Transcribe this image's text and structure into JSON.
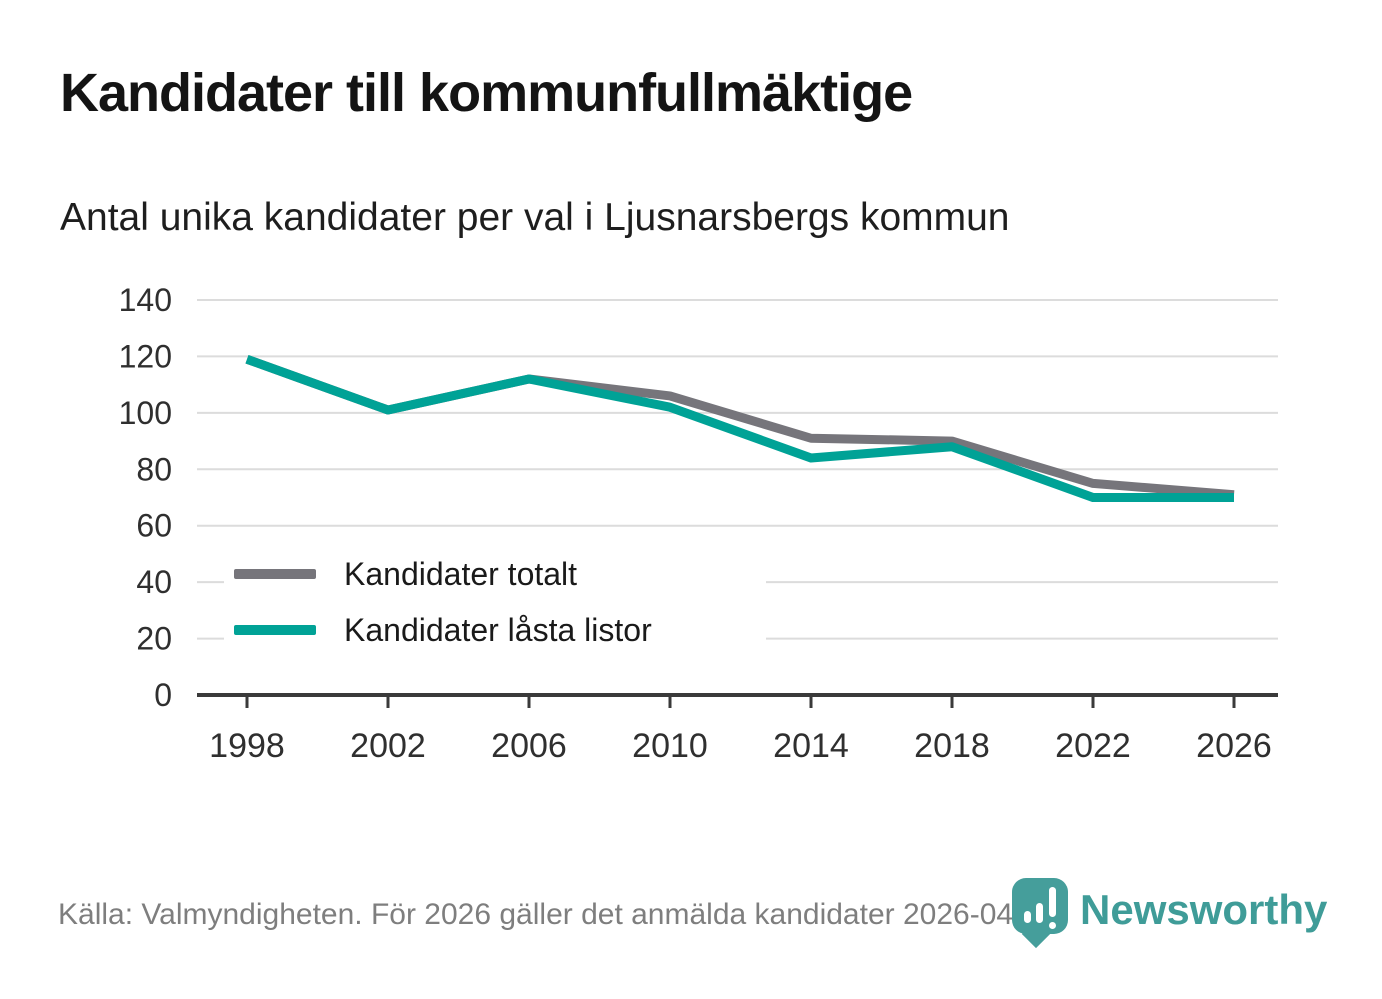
{
  "header": {
    "title": "Kandidater till kommunfullmäktige",
    "subtitle": "Antal unika kandidater per val i Ljusnarsbergs kommun"
  },
  "chart_data": {
    "type": "line",
    "x": [
      1998,
      2002,
      2006,
      2010,
      2014,
      2018,
      2022,
      2026
    ],
    "series": [
      {
        "name": "Kandidater totalt",
        "color": "#76757b",
        "values": [
          119,
          101,
          112,
          106,
          91,
          90,
          75,
          71
        ]
      },
      {
        "name": "Kandidater låsta listor",
        "color": "#00a296",
        "values": [
          119,
          101,
          112,
          102,
          84,
          88,
          70,
          70
        ]
      }
    ],
    "title": "Kandidater till kommunfullmäktige",
    "subtitle": "Antal unika kandidater per val i Ljusnarsbergs kommun",
    "xlabel": "",
    "ylabel": "",
    "ylim": [
      0,
      140
    ],
    "ytick_step": 20,
    "grid": "horizontal-only",
    "legend_position": "inside-left"
  },
  "legend": {
    "items": [
      {
        "label": "Kandidater totalt",
        "color": "#76757b"
      },
      {
        "label": "Kandidater låsta listor",
        "color": "#00a296"
      }
    ]
  },
  "footer": {
    "source_text": "Källa: Valmyndigheten. För 2026 gäller det anmälda kandidater 2026-04-10.",
    "brand_name": "Newsworthy"
  },
  "colors": {
    "accent_teal": "#00a296",
    "series_gray": "#76757b",
    "brand_teal": "#3f9c98",
    "grid": "#dcdcdc",
    "axis": "#3a3a3a",
    "tick_text": "#2f2f2f",
    "footer_text": "#7e7e7e",
    "title_text": "#141414"
  }
}
